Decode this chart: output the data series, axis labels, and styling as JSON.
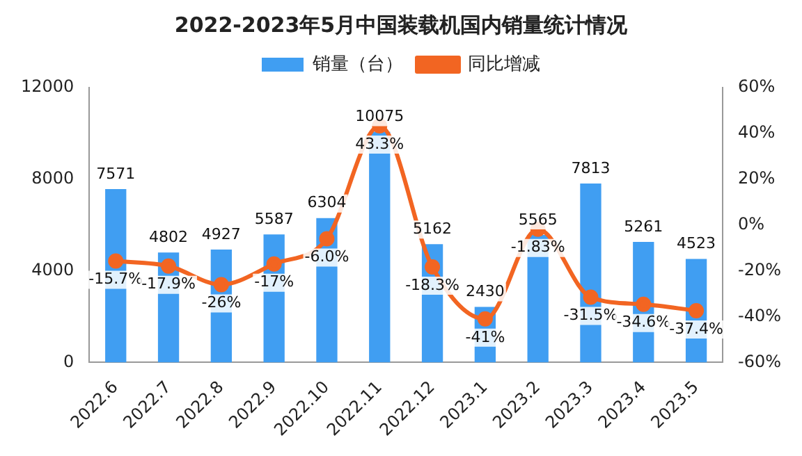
{
  "chart_data": {
    "type": "bar",
    "title": "2022-2023年5月中国装载机国内销量统计情况",
    "categories": [
      "2022.6",
      "2022.7",
      "2022.8",
      "2022.9",
      "2022.10",
      "2022.11",
      "2022.12",
      "2023.1",
      "2023.2",
      "2023.3",
      "2023.4",
      "2023.5"
    ],
    "series": [
      {
        "name": "销量（台）",
        "color": "#409ef2",
        "values": [
          7571,
          4802,
          4927,
          5587,
          6304,
          10075,
          5162,
          2430,
          5565,
          7813,
          5261,
          4523
        ]
      },
      {
        "name": "同比增减",
        "type": "line",
        "axis": "y2",
        "color": "#f26522",
        "marker": "circle",
        "values": [
          -15.7,
          -17.9,
          -26,
          -17,
          -6.0,
          43.3,
          -18.3,
          -41,
          -1.83,
          -31.5,
          -34.6,
          -37.4
        ],
        "value_labels": [
          "-15.7%",
          "-17.9%",
          "-26%",
          "-17%",
          "-6.0%",
          "43.3%",
          "-18.3%",
          "-41%",
          "-1.83%",
          "-31.5%",
          "-34.6%",
          "-37.4%"
        ]
      }
    ],
    "ylim": [
      0,
      12000
    ],
    "yticks": [
      0,
      4000,
      8000,
      12000
    ],
    "y2lim": [
      -60,
      60
    ],
    "y2ticks": [
      {
        "value": -60,
        "label": "-60%"
      },
      {
        "value": -40,
        "label": "-40%"
      },
      {
        "value": -20,
        "label": "-20%"
      },
      {
        "value": 0,
        "label": "0%"
      },
      {
        "value": 20,
        "label": "20%"
      },
      {
        "value": 40,
        "label": "40%"
      },
      {
        "value": 60,
        "label": "60%"
      }
    ],
    "data_labels": true,
    "grid": false,
    "legend": "top"
  }
}
